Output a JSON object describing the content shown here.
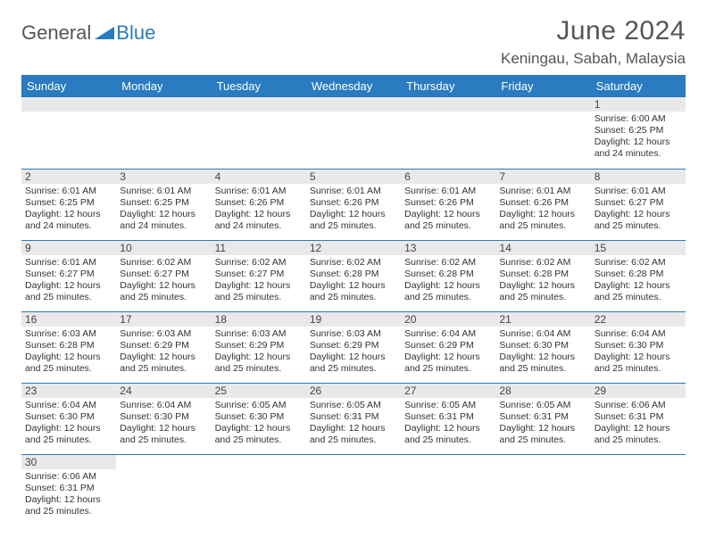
{
  "header": {
    "logo_general": "General",
    "logo_blue": "Blue",
    "month_title": "June 2024",
    "location": "Keningau, Sabah, Malaysia"
  },
  "colors": {
    "header_bg": "#2a7bbf",
    "header_fg": "#ffffff",
    "daynum_bg": "#e9e9e9",
    "cell_border": "#2a7bbf",
    "text": "#333333",
    "logo_gray": "#555555",
    "logo_blue": "#2a7bbf"
  },
  "calendar": {
    "day_names": [
      "Sunday",
      "Monday",
      "Tuesday",
      "Wednesday",
      "Thursday",
      "Friday",
      "Saturday"
    ],
    "weeks": [
      [
        null,
        null,
        null,
        null,
        null,
        null,
        {
          "num": "1",
          "sunrise": "Sunrise: 6:00 AM",
          "sunset": "Sunset: 6:25 PM",
          "daylight": "Daylight: 12 hours and 24 minutes."
        }
      ],
      [
        {
          "num": "2",
          "sunrise": "Sunrise: 6:01 AM",
          "sunset": "Sunset: 6:25 PM",
          "daylight": "Daylight: 12 hours and 24 minutes."
        },
        {
          "num": "3",
          "sunrise": "Sunrise: 6:01 AM",
          "sunset": "Sunset: 6:25 PM",
          "daylight": "Daylight: 12 hours and 24 minutes."
        },
        {
          "num": "4",
          "sunrise": "Sunrise: 6:01 AM",
          "sunset": "Sunset: 6:26 PM",
          "daylight": "Daylight: 12 hours and 24 minutes."
        },
        {
          "num": "5",
          "sunrise": "Sunrise: 6:01 AM",
          "sunset": "Sunset: 6:26 PM",
          "daylight": "Daylight: 12 hours and 25 minutes."
        },
        {
          "num": "6",
          "sunrise": "Sunrise: 6:01 AM",
          "sunset": "Sunset: 6:26 PM",
          "daylight": "Daylight: 12 hours and 25 minutes."
        },
        {
          "num": "7",
          "sunrise": "Sunrise: 6:01 AM",
          "sunset": "Sunset: 6:26 PM",
          "daylight": "Daylight: 12 hours and 25 minutes."
        },
        {
          "num": "8",
          "sunrise": "Sunrise: 6:01 AM",
          "sunset": "Sunset: 6:27 PM",
          "daylight": "Daylight: 12 hours and 25 minutes."
        }
      ],
      [
        {
          "num": "9",
          "sunrise": "Sunrise: 6:01 AM",
          "sunset": "Sunset: 6:27 PM",
          "daylight": "Daylight: 12 hours and 25 minutes."
        },
        {
          "num": "10",
          "sunrise": "Sunrise: 6:02 AM",
          "sunset": "Sunset: 6:27 PM",
          "daylight": "Daylight: 12 hours and 25 minutes."
        },
        {
          "num": "11",
          "sunrise": "Sunrise: 6:02 AM",
          "sunset": "Sunset: 6:27 PM",
          "daylight": "Daylight: 12 hours and 25 minutes."
        },
        {
          "num": "12",
          "sunrise": "Sunrise: 6:02 AM",
          "sunset": "Sunset: 6:28 PM",
          "daylight": "Daylight: 12 hours and 25 minutes."
        },
        {
          "num": "13",
          "sunrise": "Sunrise: 6:02 AM",
          "sunset": "Sunset: 6:28 PM",
          "daylight": "Daylight: 12 hours and 25 minutes."
        },
        {
          "num": "14",
          "sunrise": "Sunrise: 6:02 AM",
          "sunset": "Sunset: 6:28 PM",
          "daylight": "Daylight: 12 hours and 25 minutes."
        },
        {
          "num": "15",
          "sunrise": "Sunrise: 6:02 AM",
          "sunset": "Sunset: 6:28 PM",
          "daylight": "Daylight: 12 hours and 25 minutes."
        }
      ],
      [
        {
          "num": "16",
          "sunrise": "Sunrise: 6:03 AM",
          "sunset": "Sunset: 6:28 PM",
          "daylight": "Daylight: 12 hours and 25 minutes."
        },
        {
          "num": "17",
          "sunrise": "Sunrise: 6:03 AM",
          "sunset": "Sunset: 6:29 PM",
          "daylight": "Daylight: 12 hours and 25 minutes."
        },
        {
          "num": "18",
          "sunrise": "Sunrise: 6:03 AM",
          "sunset": "Sunset: 6:29 PM",
          "daylight": "Daylight: 12 hours and 25 minutes."
        },
        {
          "num": "19",
          "sunrise": "Sunrise: 6:03 AM",
          "sunset": "Sunset: 6:29 PM",
          "daylight": "Daylight: 12 hours and 25 minutes."
        },
        {
          "num": "20",
          "sunrise": "Sunrise: 6:04 AM",
          "sunset": "Sunset: 6:29 PM",
          "daylight": "Daylight: 12 hours and 25 minutes."
        },
        {
          "num": "21",
          "sunrise": "Sunrise: 6:04 AM",
          "sunset": "Sunset: 6:30 PM",
          "daylight": "Daylight: 12 hours and 25 minutes."
        },
        {
          "num": "22",
          "sunrise": "Sunrise: 6:04 AM",
          "sunset": "Sunset: 6:30 PM",
          "daylight": "Daylight: 12 hours and 25 minutes."
        }
      ],
      [
        {
          "num": "23",
          "sunrise": "Sunrise: 6:04 AM",
          "sunset": "Sunset: 6:30 PM",
          "daylight": "Daylight: 12 hours and 25 minutes."
        },
        {
          "num": "24",
          "sunrise": "Sunrise: 6:04 AM",
          "sunset": "Sunset: 6:30 PM",
          "daylight": "Daylight: 12 hours and 25 minutes."
        },
        {
          "num": "25",
          "sunrise": "Sunrise: 6:05 AM",
          "sunset": "Sunset: 6:30 PM",
          "daylight": "Daylight: 12 hours and 25 minutes."
        },
        {
          "num": "26",
          "sunrise": "Sunrise: 6:05 AM",
          "sunset": "Sunset: 6:31 PM",
          "daylight": "Daylight: 12 hours and 25 minutes."
        },
        {
          "num": "27",
          "sunrise": "Sunrise: 6:05 AM",
          "sunset": "Sunset: 6:31 PM",
          "daylight": "Daylight: 12 hours and 25 minutes."
        },
        {
          "num": "28",
          "sunrise": "Sunrise: 6:05 AM",
          "sunset": "Sunset: 6:31 PM",
          "daylight": "Daylight: 12 hours and 25 minutes."
        },
        {
          "num": "29",
          "sunrise": "Sunrise: 6:06 AM",
          "sunset": "Sunset: 6:31 PM",
          "daylight": "Daylight: 12 hours and 25 minutes."
        }
      ],
      [
        {
          "num": "30",
          "sunrise": "Sunrise: 6:06 AM",
          "sunset": "Sunset: 6:31 PM",
          "daylight": "Daylight: 12 hours and 25 minutes."
        },
        null,
        null,
        null,
        null,
        null,
        null
      ]
    ]
  }
}
